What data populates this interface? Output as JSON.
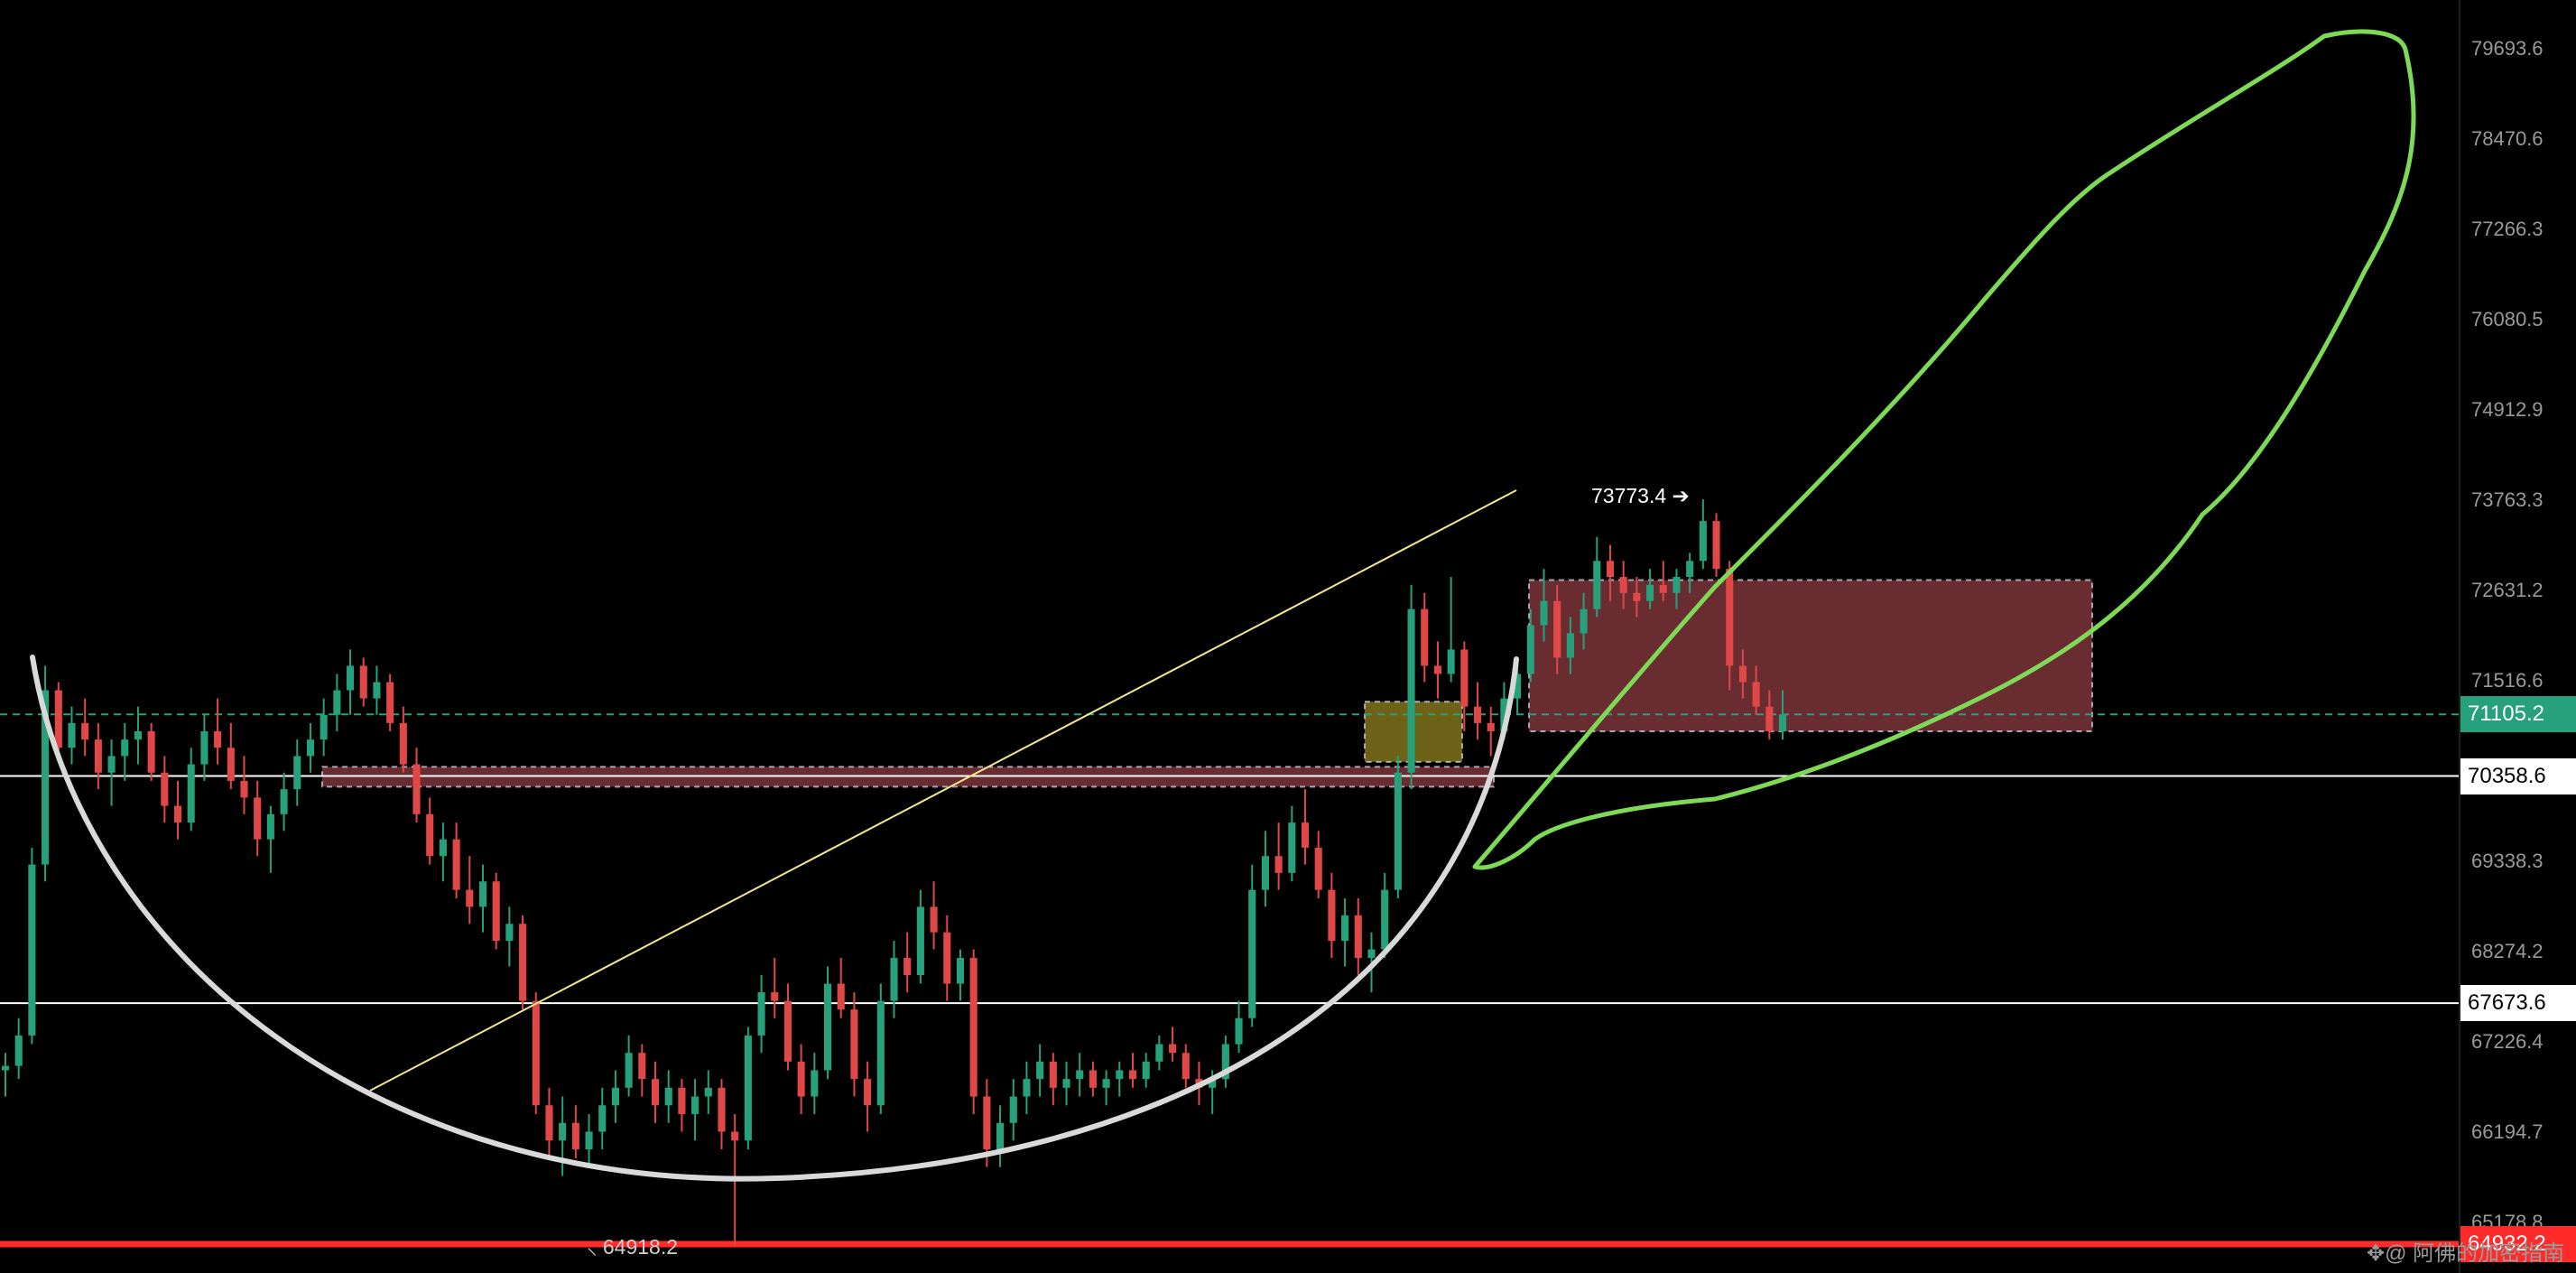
{
  "chart_data": {
    "type": "candlestick",
    "y_axis": {
      "ticks": [
        79693.6,
        78470.6,
        77266.3,
        76080.5,
        74912.9,
        73763.3,
        72631.2,
        71516.6,
        69338.3,
        68274.2,
        67226.4,
        66194.7,
        65178.8
      ],
      "tick_labels": [
        "79693.6",
        "78470.6",
        "77266.3",
        "76080.5",
        "74912.9",
        "73763.3",
        "72631.2",
        "71516.6",
        "69338.3",
        "68274.2",
        "67226.4",
        "66194.7",
        "65178.8"
      ],
      "scale": "log",
      "position": "right"
    },
    "price_tags": {
      "current": {
        "value": 71105.2,
        "label": "71105.2",
        "color": "#26a17b"
      },
      "level_upper": {
        "value": 70358.6,
        "label": "70358.6",
        "color": "#ffffff"
      },
      "level_lower": {
        "value": 67673.6,
        "label": "67673.6",
        "color": "#ffffff"
      },
      "level_red": {
        "value": 64932.2,
        "label": "64932.2",
        "color": "#ff2a2a"
      }
    },
    "annotations": {
      "high": {
        "value": 73773.4,
        "label": "73773.4"
      },
      "low": {
        "value": 64918.2,
        "label": "64918.2"
      }
    },
    "candles": [
      [
        0,
        66900,
        67100,
        66600,
        66950
      ],
      [
        1,
        66950,
        67500,
        66800,
        67300
      ],
      [
        2,
        67300,
        69500,
        67200,
        69300
      ],
      [
        3,
        69300,
        71700,
        69100,
        71400
      ],
      [
        4,
        71400,
        71500,
        70600,
        70700
      ],
      [
        5,
        70700,
        71200,
        70500,
        71000
      ],
      [
        6,
        71000,
        71300,
        70600,
        70800
      ],
      [
        7,
        70800,
        71000,
        70200,
        70400
      ],
      [
        8,
        70400,
        70800,
        70000,
        70600
      ],
      [
        9,
        70600,
        71000,
        70300,
        70800
      ],
      [
        10,
        70800,
        71200,
        70500,
        70900
      ],
      [
        11,
        70900,
        71000,
        70300,
        70400
      ],
      [
        12,
        70400,
        70600,
        69800,
        70000
      ],
      [
        13,
        70000,
        70300,
        69600,
        69800
      ],
      [
        14,
        69800,
        70700,
        69700,
        70500
      ],
      [
        15,
        70500,
        71100,
        70300,
        70900
      ],
      [
        16,
        70900,
        71300,
        70500,
        70700
      ],
      [
        17,
        70700,
        71000,
        70200,
        70300
      ],
      [
        18,
        70300,
        70600,
        69900,
        70100
      ],
      [
        19,
        70100,
        70300,
        69400,
        69600
      ],
      [
        20,
        69600,
        70000,
        69200,
        69900
      ],
      [
        21,
        69900,
        70400,
        69700,
        70200
      ],
      [
        22,
        70200,
        70800,
        70000,
        70600
      ],
      [
        23,
        70600,
        71000,
        70400,
        70800
      ],
      [
        24,
        70800,
        71300,
        70600,
        71100
      ],
      [
        25,
        71100,
        71600,
        70900,
        71400
      ],
      [
        26,
        71400,
        71900,
        71100,
        71700
      ],
      [
        27,
        71700,
        71800,
        71200,
        71300
      ],
      [
        28,
        71300,
        71700,
        71100,
        71500
      ],
      [
        29,
        71500,
        71600,
        70900,
        71000
      ],
      [
        30,
        71000,
        71200,
        70400,
        70500
      ],
      [
        31,
        70500,
        70700,
        69800,
        69900
      ],
      [
        32,
        69900,
        70100,
        69300,
        69400
      ],
      [
        33,
        69400,
        69800,
        69100,
        69600
      ],
      [
        34,
        69600,
        69800,
        68900,
        69000
      ],
      [
        35,
        69000,
        69400,
        68600,
        68800
      ],
      [
        36,
        68800,
        69300,
        68500,
        69100
      ],
      [
        37,
        69100,
        69200,
        68300,
        68400
      ],
      [
        38,
        68400,
        68800,
        68100,
        68600
      ],
      [
        39,
        68600,
        68700,
        67600,
        67700
      ],
      [
        40,
        67700,
        67800,
        66400,
        66500
      ],
      [
        41,
        66500,
        66700,
        65900,
        66100
      ],
      [
        42,
        66100,
        66600,
        65700,
        66300
      ],
      [
        43,
        66300,
        66500,
        65900,
        66000
      ],
      [
        44,
        66000,
        66400,
        65800,
        66200
      ],
      [
        45,
        66200,
        66700,
        66000,
        66500
      ],
      [
        46,
        66500,
        66900,
        66300,
        66700
      ],
      [
        47,
        66700,
        67300,
        66600,
        67100
      ],
      [
        48,
        67100,
        67200,
        66600,
        66800
      ],
      [
        49,
        66800,
        67000,
        66300,
        66500
      ],
      [
        50,
        66500,
        66900,
        66300,
        66700
      ],
      [
        51,
        66700,
        66800,
        66200,
        66400
      ],
      [
        52,
        66400,
        66800,
        66100,
        66600
      ],
      [
        53,
        66600,
        66900,
        66400,
        66700
      ],
      [
        54,
        66700,
        66800,
        66000,
        66200
      ],
      [
        55,
        66200,
        66400,
        64918,
        66100
      ],
      [
        56,
        66100,
        67400,
        66000,
        67300
      ],
      [
        57,
        67300,
        68000,
        67100,
        67800
      ],
      [
        58,
        67800,
        68200,
        67500,
        67700
      ],
      [
        59,
        67700,
        67900,
        66900,
        67000
      ],
      [
        60,
        67000,
        67200,
        66400,
        66600
      ],
      [
        61,
        66600,
        67100,
        66400,
        66900
      ],
      [
        62,
        66900,
        68100,
        66800,
        67900
      ],
      [
        63,
        67900,
        68200,
        67500,
        67600
      ],
      [
        64,
        67600,
        67800,
        66600,
        66800
      ],
      [
        65,
        66800,
        67000,
        66200,
        66500
      ],
      [
        66,
        66500,
        67900,
        66400,
        67700
      ],
      [
        67,
        67700,
        68400,
        67500,
        68200
      ],
      [
        68,
        68200,
        68500,
        67800,
        68000
      ],
      [
        69,
        68000,
        69000,
        67900,
        68800
      ],
      [
        70,
        68800,
        69100,
        68300,
        68500
      ],
      [
        71,
        68500,
        68700,
        67700,
        67900
      ],
      [
        72,
        67900,
        68300,
        67700,
        68200
      ],
      [
        73,
        68200,
        68300,
        66400,
        66600
      ],
      [
        74,
        66600,
        66800,
        65800,
        66000
      ],
      [
        75,
        66000,
        66500,
        65800,
        66300
      ],
      [
        76,
        66300,
        66800,
        66100,
        66600
      ],
      [
        77,
        66600,
        67000,
        66400,
        66800
      ],
      [
        78,
        66800,
        67200,
        66600,
        67000
      ],
      [
        79,
        67000,
        67100,
        66500,
        66700
      ],
      [
        80,
        66700,
        67000,
        66500,
        66800
      ],
      [
        81,
        66800,
        67100,
        66600,
        66900
      ],
      [
        82,
        66900,
        67000,
        66600,
        66700
      ],
      [
        83,
        66700,
        66900,
        66500,
        66800
      ],
      [
        84,
        66800,
        67000,
        66600,
        66900
      ],
      [
        85,
        66900,
        67100,
        66700,
        66800
      ],
      [
        86,
        66800,
        67100,
        66700,
        67000
      ],
      [
        87,
        67000,
        67300,
        66900,
        67200
      ],
      [
        88,
        67200,
        67400,
        67000,
        67100
      ],
      [
        89,
        67100,
        67200,
        66700,
        66800
      ],
      [
        90,
        66800,
        67000,
        66500,
        66700
      ],
      [
        91,
        66700,
        66900,
        66400,
        66800
      ],
      [
        92,
        66800,
        67300,
        66700,
        67200
      ],
      [
        93,
        67200,
        67700,
        67100,
        67500
      ],
      [
        94,
        67500,
        69300,
        67400,
        69000
      ],
      [
        95,
        69000,
        69700,
        68800,
        69400
      ],
      [
        96,
        69400,
        69800,
        69000,
        69200
      ],
      [
        97,
        69200,
        70000,
        69100,
        69800
      ],
      [
        98,
        69800,
        70200,
        69300,
        69500
      ],
      [
        99,
        69500,
        69700,
        68900,
        69000
      ],
      [
        100,
        69000,
        69200,
        68200,
        68400
      ],
      [
        101,
        68400,
        68900,
        68100,
        68700
      ],
      [
        102,
        68700,
        68900,
        68000,
        68200
      ],
      [
        103,
        68200,
        68500,
        67800,
        68300
      ],
      [
        104,
        68300,
        69200,
        68200,
        69000
      ],
      [
        105,
        69000,
        70600,
        68900,
        70400
      ],
      [
        106,
        70400,
        72700,
        70200,
        72400
      ],
      [
        107,
        72400,
        72600,
        71500,
        71700
      ],
      [
        108,
        71700,
        72000,
        71300,
        71600
      ],
      [
        109,
        71600,
        72800,
        71500,
        71900
      ],
      [
        110,
        71900,
        72000,
        70900,
        71200
      ],
      [
        111,
        71200,
        71500,
        70800,
        71000
      ],
      [
        112,
        71000,
        71200,
        70600,
        70900
      ],
      [
        113,
        70900,
        71500,
        70800,
        71300
      ],
      [
        114,
        71300,
        71800,
        71100,
        71600
      ],
      [
        115,
        71600,
        72400,
        71500,
        72200
      ],
      [
        116,
        72200,
        72900,
        72000,
        72500
      ],
      [
        117,
        72500,
        72700,
        71600,
        71800
      ],
      [
        118,
        71800,
        72300,
        71600,
        72100
      ],
      [
        119,
        72100,
        72600,
        71900,
        72400
      ],
      [
        120,
        72400,
        73300,
        72300,
        73000
      ],
      [
        121,
        73000,
        73200,
        72500,
        72800
      ],
      [
        122,
        72800,
        73000,
        72400,
        72600
      ],
      [
        123,
        72600,
        72800,
        72300,
        72500
      ],
      [
        124,
        72500,
        72900,
        72400,
        72700
      ],
      [
        125,
        72700,
        73000,
        72500,
        72600
      ],
      [
        126,
        72600,
        72900,
        72400,
        72800
      ],
      [
        127,
        72800,
        73100,
        72600,
        73000
      ],
      [
        128,
        73000,
        73773,
        72900,
        73500
      ],
      [
        129,
        73500,
        73600,
        72800,
        72900
      ],
      [
        130,
        72900,
        73000,
        71400,
        71700
      ],
      [
        131,
        71700,
        71900,
        71300,
        71500
      ],
      [
        132,
        71500,
        71700,
        71100,
        71200
      ],
      [
        133,
        71200,
        71400,
        70800,
        70900
      ],
      [
        134,
        70900,
        71400,
        70800,
        71105
      ]
    ]
  },
  "watermark": "✥@ 阿佛的加密指南",
  "colors": {
    "up": "#26a17b",
    "down": "#e04848",
    "cup": "#d9d9d9",
    "trendline": "#f0e68c",
    "projection": "#7ed957",
    "zone": "#c0525a",
    "fvg": "#b8a32a"
  }
}
